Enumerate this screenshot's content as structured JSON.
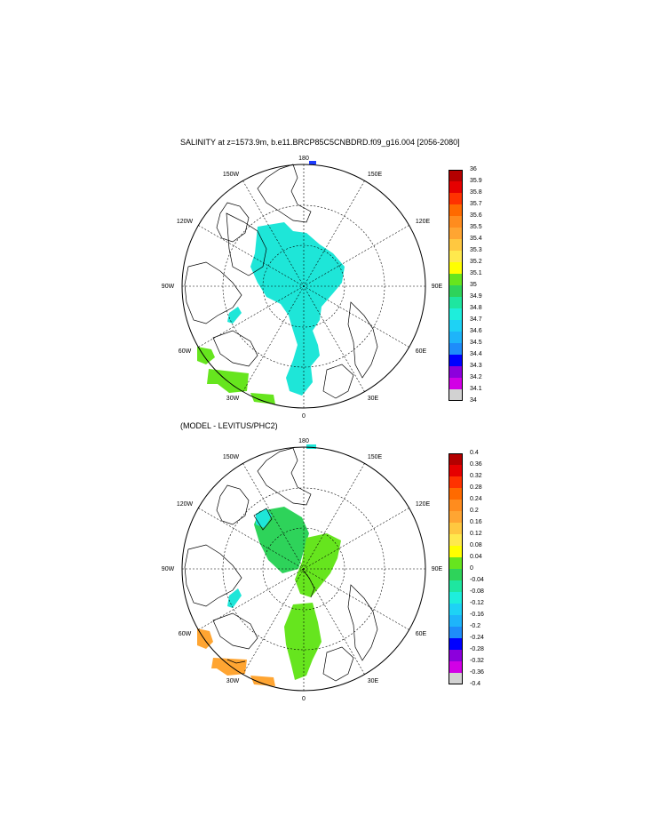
{
  "panels": [
    {
      "title": "SALINITY at z=1573.9m, b.e11.BRCP85C5CNBDRD.f09_g16.004 [2056-2080]",
      "labels": {
        "lon180": "180",
        "lon150W": "150W",
        "lon150E": "150E",
        "lon120W": "120W",
        "lon120E": "120E",
        "lon90W": "90W",
        "lon90E": "90E",
        "lon60W": "60W",
        "lon60E": "60E",
        "lon30W": "30W",
        "lon30E": "30E",
        "lon0": "0"
      },
      "colorbar": {
        "ticks": [
          "36",
          "35.9",
          "35.8",
          "35.7",
          "35.6",
          "35.5",
          "35.4",
          "35.3",
          "35.2",
          "35.1",
          "35",
          "34.9",
          "34.8",
          "34.7",
          "34.6",
          "34.5",
          "34.4",
          "34.3",
          "34.2",
          "34.1",
          "34"
        ],
        "colors": [
          "#b40000",
          "#e60000",
          "#ff3200",
          "#ff6a00",
          "#ff8c1e",
          "#ffa532",
          "#ffc840",
          "#ffe94d",
          "#ffff00",
          "#66e51e",
          "#2ed35a",
          "#1ee6a0",
          "#1eeedc",
          "#1ed2f5",
          "#1eb4fa",
          "#1e8cfa",
          "#0000ff",
          "#8c00dc",
          "#d200e6",
          "#d2d2d2",
          "#6e6e6e"
        ]
      }
    },
    {
      "title": "(MODEL - LEVITUS/PHC2)",
      "labels": {
        "lon180": "180",
        "lon150W": "150W",
        "lon150E": "150E",
        "lon120W": "120W",
        "lon120E": "120E",
        "lon90W": "90W",
        "lon90E": "90E",
        "lon60W": "60W",
        "lon60E": "60E",
        "lon30W": "30W",
        "lon30E": "30E",
        "lon0": "0"
      },
      "colorbar": {
        "ticks": [
          "0.4",
          "0.36",
          "0.32",
          "0.28",
          "0.24",
          "0.2",
          "0.16",
          "0.12",
          "0.08",
          "0.04",
          "0",
          "-0.04",
          "-0.08",
          "-0.12",
          "-0.16",
          "-0.2",
          "-0.24",
          "-0.28",
          "-0.32",
          "-0.36",
          "-0.4"
        ],
        "colors": [
          "#b40000",
          "#e60000",
          "#ff3200",
          "#ff6a00",
          "#ff8c1e",
          "#ffa532",
          "#ffc840",
          "#ffe94d",
          "#ffff00",
          "#66e51e",
          "#2ed35a",
          "#1ee6a0",
          "#1eeedc",
          "#1ed2f5",
          "#1eb4fa",
          "#1e8cfa",
          "#0000ff",
          "#8c00dc",
          "#d200e6",
          "#d2d2d2",
          "#6e6e6e"
        ]
      }
    }
  ],
  "colors": {
    "cyan_field": "#1ee6d8",
    "green_field": "#2ed35a",
    "lightgreen_field": "#66e51e",
    "orange_field": "#ffa532",
    "blue_spot": "#1e3cff"
  }
}
